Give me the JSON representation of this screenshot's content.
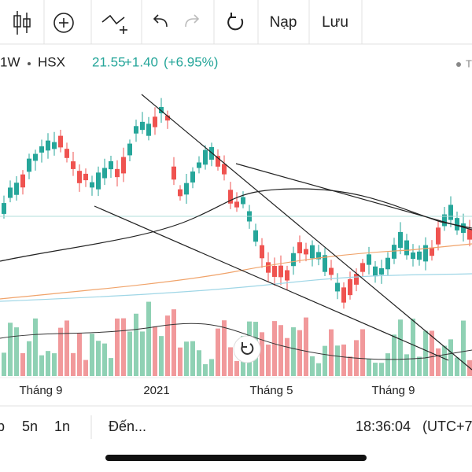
{
  "toolbar": {
    "load": "Nạp",
    "save": "Lưu"
  },
  "header": {
    "interval": "1W",
    "exchange": "HSX",
    "price": "21.55",
    "change": "+1.40",
    "change_percent": "(+6.95%)",
    "right_label": "T"
  },
  "x_labels": [
    "Tháng 9",
    "2021",
    "Tháng 5",
    "Tháng 9"
  ],
  "bottom_bar": {
    "ranges": [
      "p",
      "5n",
      "1n"
    ],
    "goto": "Đến...",
    "time": "18:36:04",
    "timezone": "(UTC+7"
  }
}
